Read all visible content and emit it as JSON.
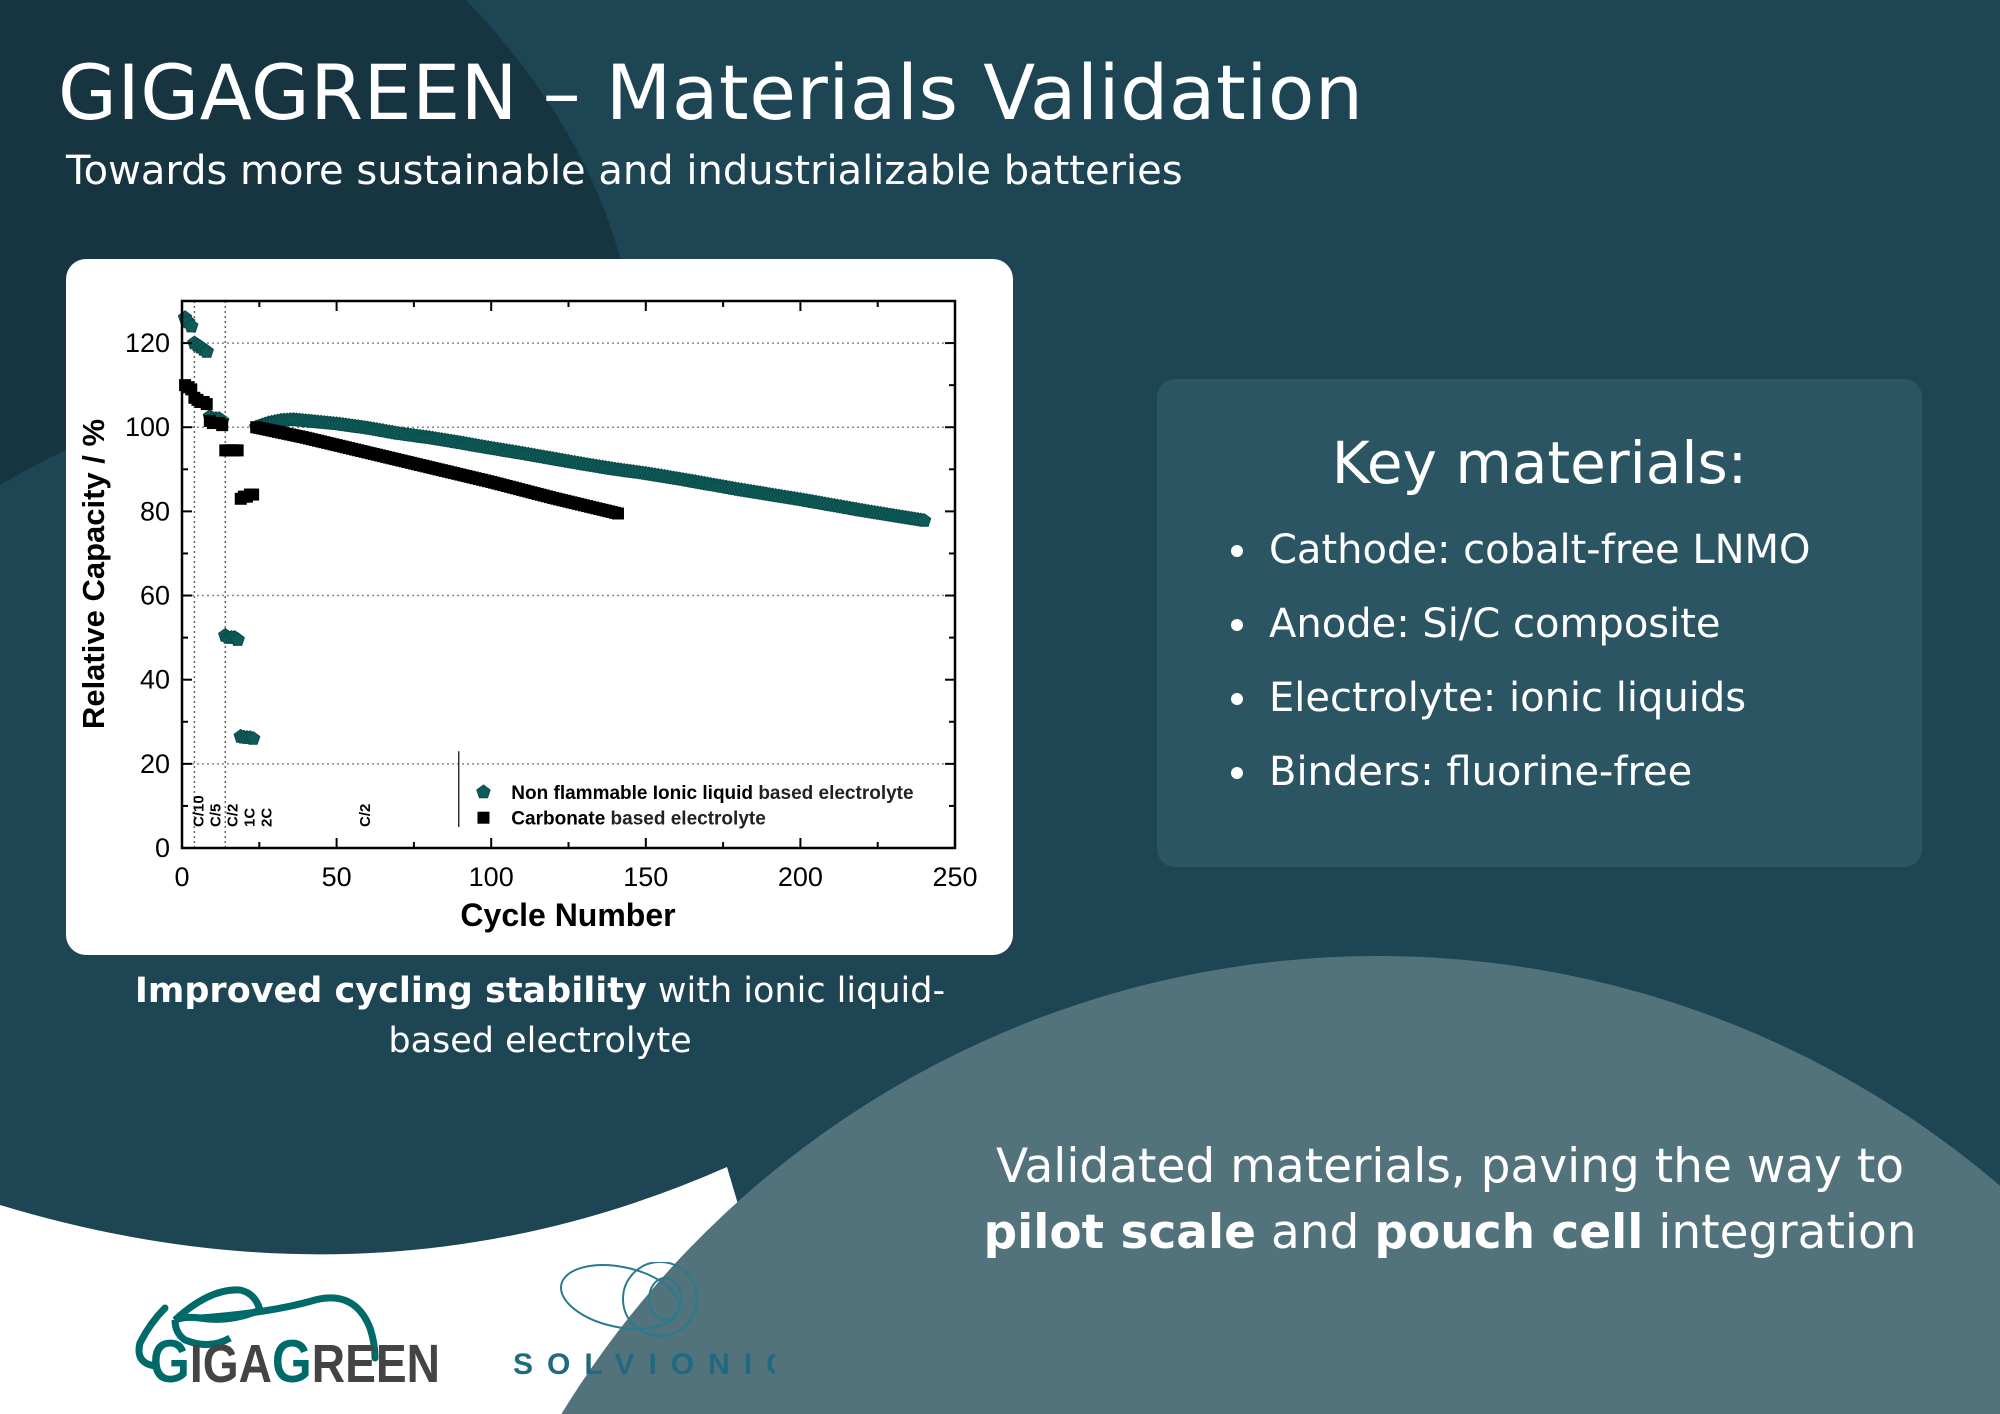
{
  "header": {
    "title": "GIGAGREEN – Materials Validation",
    "subtitle": "Towards more sustainable and industrializable batteries"
  },
  "colors": {
    "background": "#1d4554",
    "dark_shape": "#173540",
    "light_shape": "#52737b",
    "key_box": "#2c5563",
    "ionic_series": "#0e5b59",
    "carbonate_series": "#000000",
    "logo_teal": "#006a6a",
    "solvionic_blue": "#1f6a80"
  },
  "chart_data": {
    "type": "scatter",
    "xlabel": "Cycle Number",
    "ylabel": "Relative Capacity / %",
    "xlim": [
      0,
      250
    ],
    "ylim": [
      0,
      130
    ],
    "xticks": [
      "0",
      "50",
      "100",
      "150",
      "200",
      "250"
    ],
    "yticks": [
      "0",
      "20",
      "40",
      "60",
      "80",
      "100",
      "120"
    ],
    "grid_y": [
      20,
      60,
      100,
      120
    ],
    "rate_dividers": [
      4,
      14
    ],
    "rate_labels": [
      {
        "text": "C/10",
        "x": 3
      },
      {
        "text": "C/5",
        "x": 6
      },
      {
        "text": "C/2",
        "x": 9
      },
      {
        "text": "1C",
        "x": 12.5
      },
      {
        "text": "2C",
        "x": 16
      },
      {
        "text": "C/2",
        "x": 57
      }
    ],
    "legend_placement": "bottom-right",
    "series": [
      {
        "name": "Non flammable Ionic liquid based electrolyte",
        "name_bold": "Non flammable Ionic liquid",
        "name_rest": " based electrolyte",
        "marker": "pentagon",
        "points": [
          [
            1,
            126
          ],
          [
            2,
            125
          ],
          [
            3,
            124
          ],
          [
            4,
            120
          ],
          [
            5,
            119.5
          ],
          [
            6,
            119
          ],
          [
            7,
            118.5
          ],
          [
            8,
            118
          ],
          [
            9,
            102.5
          ],
          [
            10,
            102
          ],
          [
            11,
            102
          ],
          [
            12,
            102
          ],
          [
            13,
            101.5
          ],
          [
            14,
            50.5
          ],
          [
            15,
            50
          ],
          [
            16,
            50
          ],
          [
            17,
            50
          ],
          [
            18,
            49.5
          ],
          [
            19,
            26.5
          ],
          [
            20,
            26.3
          ],
          [
            21,
            26.2
          ],
          [
            22,
            26.2
          ],
          [
            23,
            26
          ]
        ],
        "trend": [
          [
            24,
            100
          ],
          [
            28,
            101
          ],
          [
            32,
            101.6
          ],
          [
            36,
            101.8
          ],
          [
            40,
            101.5
          ],
          [
            50,
            100.8
          ],
          [
            60,
            99.8
          ],
          [
            70,
            98.5
          ],
          [
            80,
            97.5
          ],
          [
            90,
            96.3
          ],
          [
            100,
            95
          ],
          [
            110,
            93.8
          ],
          [
            120,
            92.5
          ],
          [
            130,
            91.2
          ],
          [
            140,
            90
          ],
          [
            150,
            89
          ],
          [
            160,
            87.8
          ],
          [
            170,
            86.5
          ],
          [
            180,
            85.2
          ],
          [
            190,
            84
          ],
          [
            200,
            82.8
          ],
          [
            210,
            81.5
          ],
          [
            220,
            80.2
          ],
          [
            230,
            79
          ],
          [
            240,
            77.8
          ]
        ]
      },
      {
        "name": "Carbonate based electrolyte",
        "name_bold": "Carbonate",
        "name_rest": " based electrolyte",
        "marker": "square",
        "points": [
          [
            1,
            110
          ],
          [
            2,
            109.5
          ],
          [
            3,
            109
          ],
          [
            4,
            107
          ],
          [
            5,
            106.5
          ],
          [
            6,
            106
          ],
          [
            7,
            106
          ],
          [
            8,
            105.5
          ],
          [
            9,
            101.5
          ],
          [
            10,
            101
          ],
          [
            11,
            101
          ],
          [
            12,
            101
          ],
          [
            13,
            100.5
          ],
          [
            14,
            94.5
          ],
          [
            15,
            94.5
          ],
          [
            16,
            94.5
          ],
          [
            17,
            94.5
          ],
          [
            18,
            94.5
          ],
          [
            19,
            83
          ],
          [
            20,
            83.5
          ],
          [
            21,
            83.5
          ],
          [
            22,
            84
          ],
          [
            23,
            84
          ]
        ],
        "trend": [
          [
            24,
            100
          ],
          [
            40,
            97.5
          ],
          [
            60,
            94
          ],
          [
            80,
            90.5
          ],
          [
            100,
            87
          ],
          [
            120,
            83.2
          ],
          [
            141,
            79.5
          ]
        ]
      }
    ]
  },
  "caption": {
    "bold": "Improved cycling stability",
    "rest": " with ionic liquid-based electrolyte"
  },
  "key_materials": {
    "title": "Key materials:",
    "items": [
      "Cathode: cobalt-free LNMO",
      "Anode: Si/C composite",
      "Electrolyte: ionic liquids",
      "Binders: fluorine-free"
    ]
  },
  "closing": {
    "part1": "Validated materials, paving the way to ",
    "bold1": "pilot scale",
    "part2": " and ",
    "bold2": "pouch cell",
    "part3": " integration"
  },
  "logos": {
    "gigagreen": "GIGAGREEN",
    "solvionic": "SOLVIONIC"
  }
}
